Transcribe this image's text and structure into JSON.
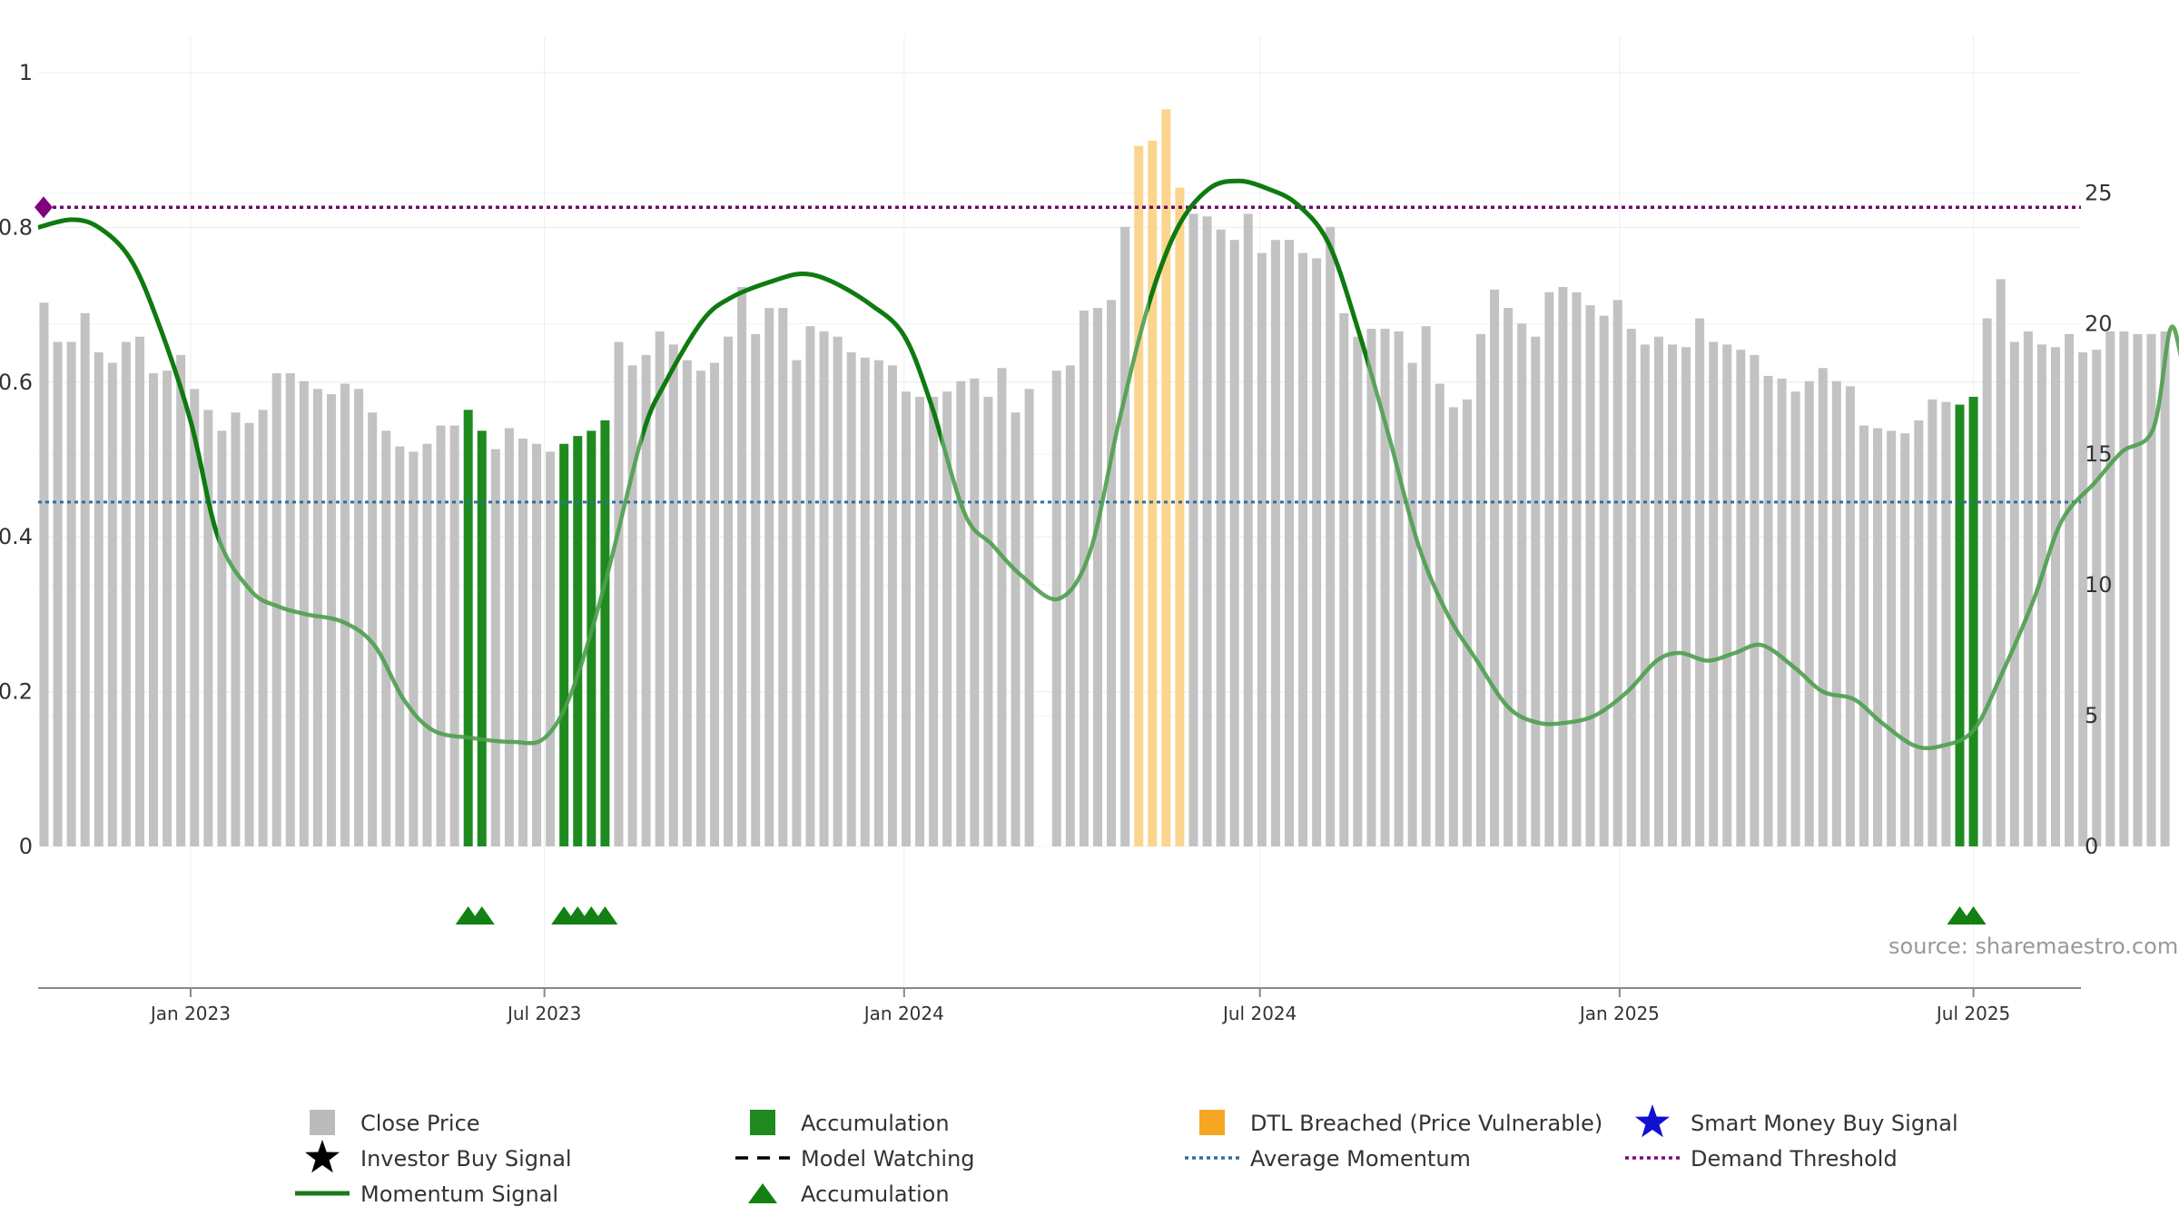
{
  "chart_data": {
    "type": "bar",
    "x_start": "2022-10-15",
    "x_end": "2025-08-25",
    "y_left": {
      "min": 0,
      "max": 1,
      "ticks": [
        "0",
        "0.2",
        "0.4",
        "0.6",
        "0.8",
        "1"
      ]
    },
    "y_right": {
      "min": 0,
      "max": 29.6,
      "ticks": [
        "0",
        "5",
        "10",
        "15",
        "20",
        "25"
      ]
    },
    "x_ticks": [
      {
        "date": "2023-01-01",
        "label": "Jan 2023"
      },
      {
        "date": "2023-07-01",
        "label": "Jul 2023"
      },
      {
        "date": "2024-01-01",
        "label": "Jan 2024"
      },
      {
        "date": "2024-07-01",
        "label": "Jul 2024"
      },
      {
        "date": "2025-01-01",
        "label": "Jan 2025"
      },
      {
        "date": "2025-07-01",
        "label": "Jul 2025"
      }
    ],
    "bars": [
      [
        "2022-10-18",
        20.8,
        "g"
      ],
      [
        "2022-10-25",
        19.3,
        "g"
      ],
      [
        "2022-11-01",
        19.3,
        "g"
      ],
      [
        "2022-11-08",
        20.4,
        "g"
      ],
      [
        "2022-11-15",
        18.9,
        "g"
      ],
      [
        "2022-11-22",
        18.5,
        "g"
      ],
      [
        "2022-11-29",
        19.3,
        "g"
      ],
      [
        "2022-12-06",
        19.5,
        "g"
      ],
      [
        "2022-12-13",
        18.1,
        "g"
      ],
      [
        "2022-12-20",
        18.2,
        "g"
      ],
      [
        "2022-12-27",
        18.8,
        "g"
      ],
      [
        "2023-01-03",
        17.5,
        "g"
      ],
      [
        "2023-01-10",
        16.7,
        "g"
      ],
      [
        "2023-01-17",
        15.9,
        "g"
      ],
      [
        "2023-01-24",
        16.6,
        "g"
      ],
      [
        "2023-01-31",
        16.2,
        "g"
      ],
      [
        "2023-02-07",
        16.7,
        "g"
      ],
      [
        "2023-02-14",
        18.1,
        "g"
      ],
      [
        "2023-02-21",
        18.1,
        "g"
      ],
      [
        "2023-02-28",
        17.8,
        "g"
      ],
      [
        "2023-03-07",
        17.5,
        "g"
      ],
      [
        "2023-03-14",
        17.3,
        "g"
      ],
      [
        "2023-03-21",
        17.7,
        "g"
      ],
      [
        "2023-03-28",
        17.5,
        "g"
      ],
      [
        "2023-04-04",
        16.6,
        "g"
      ],
      [
        "2023-04-11",
        15.9,
        "g"
      ],
      [
        "2023-04-18",
        15.3,
        "g"
      ],
      [
        "2023-04-25",
        15.1,
        "g"
      ],
      [
        "2023-05-02",
        15.4,
        "g"
      ],
      [
        "2023-05-09",
        16.1,
        "g"
      ],
      [
        "2023-05-16",
        16.1,
        "g"
      ],
      [
        "2023-05-23",
        16.7,
        "a"
      ],
      [
        "2023-05-30",
        15.9,
        "a"
      ],
      [
        "2023-06-06",
        15.2,
        "g"
      ],
      [
        "2023-06-13",
        16.0,
        "g"
      ],
      [
        "2023-06-20",
        15.6,
        "g"
      ],
      [
        "2023-06-27",
        15.4,
        "g"
      ],
      [
        "2023-07-04",
        15.1,
        "g"
      ],
      [
        "2023-07-11",
        15.4,
        "a"
      ],
      [
        "2023-07-18",
        15.7,
        "a"
      ],
      [
        "2023-07-25",
        15.9,
        "a"
      ],
      [
        "2023-08-01",
        16.3,
        "a"
      ],
      [
        "2023-08-08",
        19.3,
        "g"
      ],
      [
        "2023-08-15",
        18.4,
        "g"
      ],
      [
        "2023-08-22",
        18.8,
        "g"
      ],
      [
        "2023-08-29",
        19.7,
        "g"
      ],
      [
        "2023-09-05",
        19.2,
        "g"
      ],
      [
        "2023-09-12",
        18.6,
        "g"
      ],
      [
        "2023-09-19",
        18.2,
        "g"
      ],
      [
        "2023-09-26",
        18.5,
        "g"
      ],
      [
        "2023-10-03",
        19.5,
        "g"
      ],
      [
        "2023-10-10",
        21.4,
        "g"
      ],
      [
        "2023-10-17",
        19.6,
        "g"
      ],
      [
        "2023-10-24",
        20.6,
        "g"
      ],
      [
        "2023-10-31",
        20.6,
        "g"
      ],
      [
        "2023-11-07",
        18.6,
        "g"
      ],
      [
        "2023-11-14",
        19.9,
        "g"
      ],
      [
        "2023-11-21",
        19.7,
        "g"
      ],
      [
        "2023-11-28",
        19.5,
        "g"
      ],
      [
        "2023-12-05",
        18.9,
        "g"
      ],
      [
        "2023-12-12",
        18.7,
        "g"
      ],
      [
        "2023-12-19",
        18.6,
        "g"
      ],
      [
        "2023-12-26",
        18.4,
        "g"
      ],
      [
        "2024-01-02",
        17.4,
        "g"
      ],
      [
        "2024-01-09",
        17.2,
        "g"
      ],
      [
        "2024-01-16",
        17.2,
        "g"
      ],
      [
        "2024-01-23",
        17.4,
        "g"
      ],
      [
        "2024-01-30",
        17.8,
        "g"
      ],
      [
        "2024-02-06",
        17.9,
        "g"
      ],
      [
        "2024-02-13",
        17.2,
        "g"
      ],
      [
        "2024-02-20",
        18.3,
        "g"
      ],
      [
        "2024-02-27",
        16.6,
        "g"
      ],
      [
        "2024-03-05",
        17.5,
        "g"
      ],
      [
        "2024-03-19",
        18.2,
        "g"
      ],
      [
        "2024-03-26",
        18.4,
        "g"
      ],
      [
        "2024-04-02",
        20.5,
        "g"
      ],
      [
        "2024-04-09",
        20.6,
        "g"
      ],
      [
        "2024-04-16",
        20.9,
        "g"
      ],
      [
        "2024-04-23",
        23.7,
        "g"
      ],
      [
        "2024-04-30",
        26.8,
        "o"
      ],
      [
        "2024-05-07",
        27.0,
        "o"
      ],
      [
        "2024-05-14",
        28.2,
        "o"
      ],
      [
        "2024-05-21",
        25.2,
        "o"
      ],
      [
        "2024-05-28",
        24.2,
        "g"
      ],
      [
        "2024-06-04",
        24.1,
        "g"
      ],
      [
        "2024-06-11",
        23.6,
        "g"
      ],
      [
        "2024-06-18",
        23.2,
        "g"
      ],
      [
        "2024-06-25",
        24.2,
        "g"
      ],
      [
        "2024-07-02",
        22.7,
        "g"
      ],
      [
        "2024-07-09",
        23.2,
        "g"
      ],
      [
        "2024-07-16",
        23.2,
        "g"
      ],
      [
        "2024-07-23",
        22.7,
        "g"
      ],
      [
        "2024-07-30",
        22.5,
        "g"
      ],
      [
        "2024-08-06",
        23.7,
        "g"
      ],
      [
        "2024-08-13",
        20.4,
        "g"
      ],
      [
        "2024-08-20",
        19.5,
        "g"
      ],
      [
        "2024-08-27",
        19.8,
        "g"
      ],
      [
        "2024-09-03",
        19.8,
        "g"
      ],
      [
        "2024-09-10",
        19.7,
        "g"
      ],
      [
        "2024-09-17",
        18.5,
        "g"
      ],
      [
        "2024-09-24",
        19.9,
        "g"
      ],
      [
        "2024-10-01",
        17.7,
        "g"
      ],
      [
        "2024-10-08",
        16.8,
        "g"
      ],
      [
        "2024-10-15",
        17.1,
        "g"
      ],
      [
        "2024-10-22",
        19.6,
        "g"
      ],
      [
        "2024-10-29",
        21.3,
        "g"
      ],
      [
        "2024-11-05",
        20.6,
        "g"
      ],
      [
        "2024-11-12",
        20.0,
        "g"
      ],
      [
        "2024-11-19",
        19.5,
        "g"
      ],
      [
        "2024-11-26",
        21.2,
        "g"
      ],
      [
        "2024-12-03",
        21.4,
        "g"
      ],
      [
        "2024-12-10",
        21.2,
        "g"
      ],
      [
        "2024-12-17",
        20.7,
        "g"
      ],
      [
        "2024-12-24",
        20.3,
        "g"
      ],
      [
        "2024-12-31",
        20.9,
        "g"
      ],
      [
        "2025-01-07",
        19.8,
        "g"
      ],
      [
        "2025-01-14",
        19.2,
        "g"
      ],
      [
        "2025-01-21",
        19.5,
        "g"
      ],
      [
        "2025-01-28",
        19.2,
        "g"
      ],
      [
        "2025-02-04",
        19.1,
        "g"
      ],
      [
        "2025-02-11",
        20.2,
        "g"
      ],
      [
        "2025-02-18",
        19.3,
        "g"
      ],
      [
        "2025-02-25",
        19.2,
        "g"
      ],
      [
        "2025-03-04",
        19.0,
        "g"
      ],
      [
        "2025-03-11",
        18.8,
        "g"
      ],
      [
        "2025-03-18",
        18.0,
        "g"
      ],
      [
        "2025-03-25",
        17.9,
        "g"
      ],
      [
        "2025-04-01",
        17.4,
        "g"
      ],
      [
        "2025-04-08",
        17.8,
        "g"
      ],
      [
        "2025-04-15",
        18.3,
        "g"
      ],
      [
        "2025-04-22",
        17.8,
        "g"
      ],
      [
        "2025-04-29",
        17.6,
        "g"
      ],
      [
        "2025-05-06",
        16.1,
        "g"
      ],
      [
        "2025-05-13",
        16.0,
        "g"
      ],
      [
        "2025-05-20",
        15.9,
        "g"
      ],
      [
        "2025-05-27",
        15.8,
        "g"
      ],
      [
        "2025-06-03",
        16.3,
        "g"
      ],
      [
        "2025-06-10",
        17.1,
        "g"
      ],
      [
        "2025-06-17",
        17.0,
        "g"
      ],
      [
        "2025-06-24",
        16.9,
        "a"
      ],
      [
        "2025-07-01",
        17.2,
        "a"
      ],
      [
        "2025-07-08",
        20.2,
        "g"
      ],
      [
        "2025-07-15",
        21.7,
        "g"
      ],
      [
        "2025-07-22",
        19.3,
        "g"
      ],
      [
        "2025-07-29",
        19.7,
        "g"
      ],
      [
        "2025-08-05",
        19.2,
        "g"
      ],
      [
        "2025-08-12",
        19.1,
        "g"
      ],
      [
        "2025-08-19",
        19.6,
        "g"
      ],
      [
        "2025-08-26",
        18.9,
        "g"
      ],
      [
        "2025-09-02",
        19.0,
        "g"
      ],
      [
        "2025-09-09",
        19.7,
        "g"
      ],
      [
        "2025-09-16",
        19.7,
        "g"
      ],
      [
        "2025-09-23",
        19.6,
        "g"
      ],
      [
        "2025-09-30",
        19.6,
        "g"
      ],
      [
        "2025-10-07",
        19.7,
        "g"
      ]
    ],
    "momentum": [
      [
        "2022-10-15",
        0.8
      ],
      [
        "2022-11-01",
        0.81
      ],
      [
        "2022-11-15",
        0.8
      ],
      [
        "2022-12-01",
        0.76
      ],
      [
        "2022-12-15",
        0.68
      ],
      [
        "2023-01-01",
        0.55
      ],
      [
        "2023-01-15",
        0.4
      ],
      [
        "2023-02-01",
        0.33
      ],
      [
        "2023-02-15",
        0.31
      ],
      [
        "2023-03-01",
        0.3
      ],
      [
        "2023-03-20",
        0.29
      ],
      [
        "2023-04-05",
        0.26
      ],
      [
        "2023-04-20",
        0.19
      ],
      [
        "2023-05-05",
        0.15
      ],
      [
        "2023-05-25",
        0.14
      ],
      [
        "2023-06-15",
        0.135
      ],
      [
        "2023-07-01",
        0.14
      ],
      [
        "2023-07-15",
        0.2
      ],
      [
        "2023-08-01",
        0.34
      ],
      [
        "2023-08-20",
        0.53
      ],
      [
        "2023-09-01",
        0.6
      ],
      [
        "2023-09-20",
        0.68
      ],
      [
        "2023-10-05",
        0.71
      ],
      [
        "2023-10-25",
        0.73
      ],
      [
        "2023-11-10",
        0.74
      ],
      [
        "2023-11-25",
        0.73
      ],
      [
        "2023-12-15",
        0.7
      ],
      [
        "2024-01-01",
        0.66
      ],
      [
        "2024-01-15",
        0.57
      ],
      [
        "2024-02-01",
        0.43
      ],
      [
        "2024-02-15",
        0.39
      ],
      [
        "2024-03-01",
        0.35
      ],
      [
        "2024-03-20",
        0.32
      ],
      [
        "2024-04-05",
        0.38
      ],
      [
        "2024-04-20",
        0.55
      ],
      [
        "2024-05-05",
        0.7
      ],
      [
        "2024-05-20",
        0.8
      ],
      [
        "2024-06-05",
        0.85
      ],
      [
        "2024-06-20",
        0.86
      ],
      [
        "2024-07-05",
        0.85
      ],
      [
        "2024-07-20",
        0.83
      ],
      [
        "2024-08-05",
        0.78
      ],
      [
        "2024-08-20",
        0.67
      ],
      [
        "2024-09-05",
        0.53
      ],
      [
        "2024-09-20",
        0.39
      ],
      [
        "2024-10-05",
        0.3
      ],
      [
        "2024-10-20",
        0.24
      ],
      [
        "2024-11-05",
        0.18
      ],
      [
        "2024-11-20",
        0.16
      ],
      [
        "2024-12-05",
        0.16
      ],
      [
        "2024-12-20",
        0.17
      ],
      [
        "2025-01-05",
        0.2
      ],
      [
        "2025-01-20",
        0.24
      ],
      [
        "2025-02-01",
        0.25
      ],
      [
        "2025-02-15",
        0.24
      ],
      [
        "2025-03-01",
        0.25
      ],
      [
        "2025-03-15",
        0.26
      ],
      [
        "2025-04-01",
        0.23
      ],
      [
        "2025-04-15",
        0.2
      ],
      [
        "2025-05-01",
        0.19
      ],
      [
        "2025-05-15",
        0.16
      ],
      [
        "2025-06-01",
        0.13
      ],
      [
        "2025-06-15",
        0.13
      ],
      [
        "2025-07-01",
        0.15
      ],
      [
        "2025-07-15",
        0.22
      ],
      [
        "2025-08-01",
        0.32
      ],
      [
        "2025-08-15",
        0.42
      ],
      [
        "2025-09-01",
        0.47
      ],
      [
        "2025-09-15",
        0.51
      ],
      [
        "2025-10-01",
        0.54
      ],
      [
        "2025-10-10",
        0.67
      ],
      [
        "2025-10-17",
        0.62
      ],
      [
        "2025-10-24",
        0.65
      ],
      [
        "2025-10-31",
        0.63
      ],
      [
        "2025-11-07",
        0.66
      ]
    ],
    "strong_momentum_ranges": [
      [
        "2022-10-15",
        "2023-01-15"
      ],
      [
        "2023-08-20",
        "2024-01-20"
      ],
      [
        "2024-05-05",
        "2024-08-25"
      ]
    ],
    "average_momentum": 0.445,
    "demand_threshold": 0.826,
    "accumulation_markers": [
      "2023-05-23",
      "2023-05-30",
      "2023-07-11",
      "2023-07-18",
      "2023-07-25",
      "2023-08-01",
      "2025-06-24",
      "2025-07-01"
    ],
    "legend": [
      {
        "label": "Close Price",
        "kind": "square",
        "color": "#bbbbbb"
      },
      {
        "label": "Accumulation",
        "kind": "square",
        "color": "#1f8a1f"
      },
      {
        "label": "DTL Breached (Price Vulnerable)",
        "kind": "square",
        "color": "#f5a623"
      },
      {
        "label": "Smart Money Buy Signal",
        "kind": "star",
        "color": "#1010d0"
      },
      {
        "label": "Investor Buy Signal",
        "kind": "star",
        "color": "#000000"
      },
      {
        "label": "Model Watching",
        "kind": "dash",
        "color": "#000000"
      },
      {
        "label": "Average Momentum",
        "kind": "dot",
        "color": "#2f6f9f"
      },
      {
        "label": "Demand Threshold",
        "kind": "dot",
        "color": "#800080"
      },
      {
        "label": "Momentum Signal",
        "kind": "line",
        "color": "#1a7a1a"
      },
      {
        "label": "Accumulation",
        "kind": "triangle",
        "color": "#128012"
      }
    ],
    "colors": {
      "gray": "#c2c2c2",
      "accumulation": "#1f8a1f",
      "dtl": "#fbd58e",
      "momentum": "#0f7a0f",
      "momentum_fade": "#4e9e4e",
      "avg": "#2f6f9f",
      "demand": "#6a0a6a",
      "marker": "#128012"
    },
    "source": "source: sharemaestro.com"
  }
}
